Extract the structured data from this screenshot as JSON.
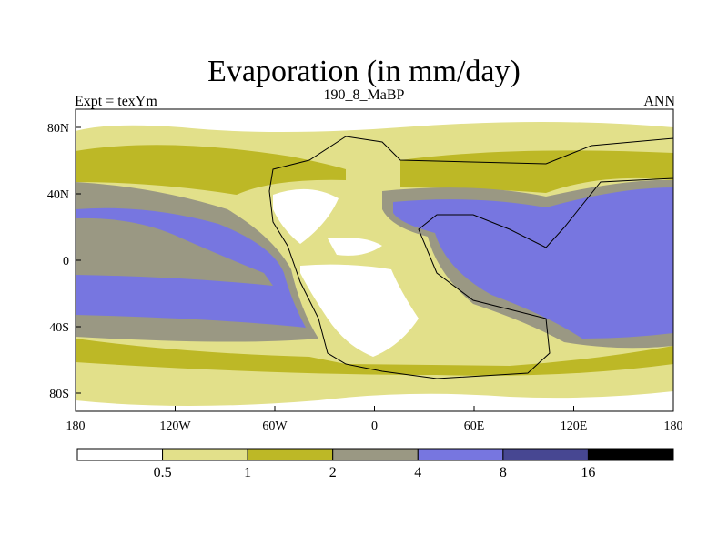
{
  "title": "Evaporation (in mm/day)",
  "subtitle": "190_8_MaBP",
  "experiment_label": "Expt = texYm",
  "season_label": "ANN",
  "axes": {
    "y_ticks": [
      "80N",
      "40N",
      "0",
      "40S",
      "80S"
    ],
    "x_ticks": [
      "180",
      "120W",
      "60W",
      "0",
      "60E",
      "120E",
      "180"
    ]
  },
  "colorbar": {
    "levels": [
      "0.5",
      "1",
      "2",
      "4",
      "8",
      "16"
    ],
    "colors": [
      "#ffffff",
      "#e2e08a",
      "#bdb826",
      "#9a9883",
      "#7776e0",
      "#474792",
      "#000000"
    ]
  }
}
